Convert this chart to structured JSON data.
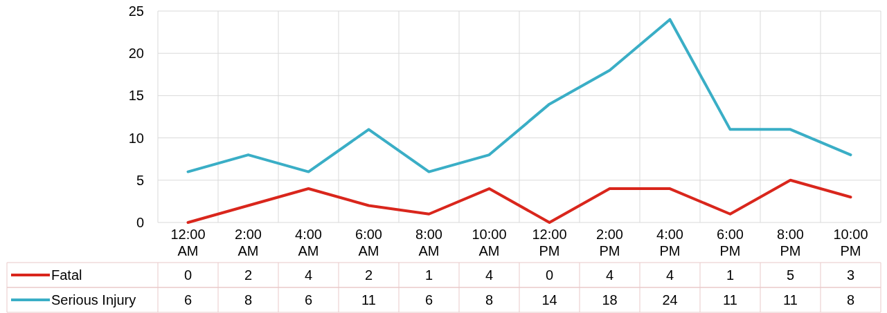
{
  "chart_data": {
    "type": "line",
    "categories": [
      "12:00 AM",
      "2:00 AM",
      "4:00 AM",
      "6:00 AM",
      "8:00 AM",
      "10:00 AM",
      "12:00 PM",
      "2:00 PM",
      "4:00 PM",
      "6:00 PM",
      "8:00 PM",
      "10:00 PM"
    ],
    "series": [
      {
        "name": "Fatal",
        "color": "#d9261c",
        "values": [
          0,
          2,
          4,
          2,
          1,
          4,
          0,
          4,
          4,
          1,
          5,
          3
        ]
      },
      {
        "name": "Serious Injury",
        "color": "#3aaec6",
        "values": [
          6,
          8,
          6,
          11,
          6,
          8,
          14,
          18,
          24,
          11,
          11,
          8
        ]
      }
    ],
    "ylim": [
      0,
      25
    ],
    "yticks": [
      0,
      5,
      10,
      15,
      20,
      25
    ],
    "grid": true,
    "legend": "bottom",
    "data_labels": true,
    "marker": "none",
    "line_style": "solid"
  }
}
